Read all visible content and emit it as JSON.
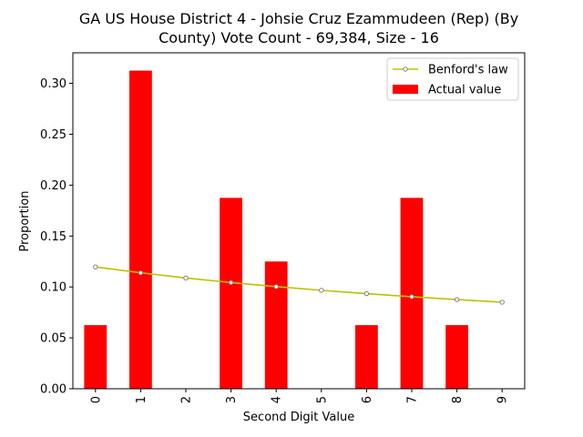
{
  "chart_data": {
    "type": "bar",
    "title_lines": [
      "GA US House District 4 - Johsie Cruz Ezammudeen (Rep) (By",
      "County) Vote Count - 69,384, Size - 16"
    ],
    "xlabel": "Second Digit Value",
    "ylabel": "Proportion",
    "categories": [
      "0",
      "1",
      "2",
      "3",
      "4",
      "5",
      "6",
      "7",
      "8",
      "9"
    ],
    "ylim": [
      0,
      0.33
    ],
    "yticks": [
      "0.00",
      "0.05",
      "0.10",
      "0.15",
      "0.20",
      "0.25",
      "0.30"
    ],
    "series": [
      {
        "name": "Actual value",
        "type": "bar",
        "color": "#ff0000",
        "values": [
          0.0625,
          0.3125,
          0.0,
          0.1875,
          0.125,
          0.0,
          0.0625,
          0.1875,
          0.0625,
          0.0
        ]
      },
      {
        "name": "Benford's law",
        "type": "line",
        "color": "#bfbf00",
        "marker_edge": "#808080",
        "values": [
          0.1197,
          0.1139,
          0.1088,
          0.1043,
          0.1003,
          0.0967,
          0.0934,
          0.0904,
          0.0876,
          0.085
        ]
      }
    ],
    "legend": {
      "position": "top-right",
      "entries": [
        "Benford's law",
        "Actual value"
      ]
    },
    "grid": false
  }
}
